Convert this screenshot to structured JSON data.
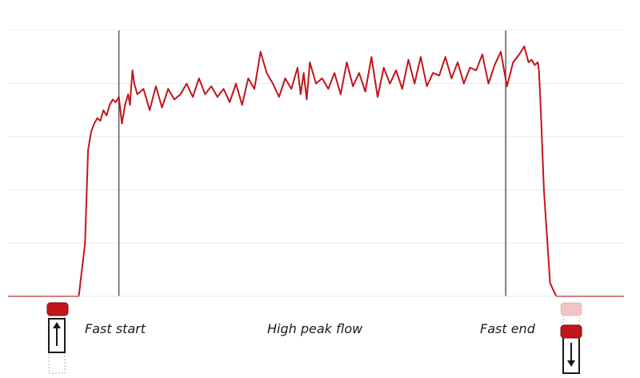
{
  "chart_data": {
    "type": "line",
    "title": "",
    "xlabel": "",
    "ylabel": "",
    "grid": true,
    "ylim": [
      0,
      100
    ],
    "xlim": [
      0,
      1000
    ],
    "line_color": "#c0161c",
    "marker_color": "#c0161c",
    "marker_light_color": "#f2c4c4",
    "series": [
      {
        "x": [
          0,
          115,
          125,
          130,
          135,
          140,
          145,
          150,
          155,
          160,
          165,
          170,
          175,
          180,
          185,
          190,
          195,
          198,
          202,
          205,
          210,
          220,
          230,
          240,
          250,
          260,
          270,
          280,
          290,
          300,
          310,
          320,
          330,
          340,
          350,
          360,
          370,
          380,
          390,
          400,
          410,
          420,
          430,
          440,
          450,
          460,
          470,
          475,
          480,
          485,
          490,
          500,
          510,
          520,
          530,
          540,
          550,
          560,
          570,
          580,
          590,
          600,
          610,
          620,
          630,
          640,
          650,
          660,
          670,
          680,
          690,
          700,
          710,
          720,
          730,
          740,
          750,
          760,
          770,
          780,
          790,
          800,
          810,
          820,
          830,
          838,
          845,
          850,
          855,
          860,
          862,
          865,
          870,
          880,
          890,
          900,
          1000
        ],
        "values": [
          0,
          0,
          20,
          55,
          62,
          65,
          67,
          66,
          70,
          68,
          72,
          74,
          73,
          75,
          65,
          72,
          76,
          72,
          85,
          80,
          76,
          78,
          70,
          79,
          71,
          78,
          74,
          76,
          80,
          75,
          82,
          76,
          79,
          75,
          78,
          73,
          80,
          72,
          82,
          78,
          92,
          84,
          80,
          75,
          82,
          78,
          86,
          76,
          84,
          74,
          88,
          80,
          82,
          78,
          84,
          76,
          88,
          79,
          84,
          77,
          90,
          75,
          86,
          80,
          85,
          78,
          89,
          80,
          90,
          79,
          84,
          83,
          90,
          82,
          88,
          80,
          86,
          85,
          91,
          80,
          87,
          92,
          79,
          88,
          91,
          94,
          88,
          89,
          87,
          88,
          85,
          70,
          40,
          5,
          0,
          0,
          0
        ]
      }
    ],
    "phase_boundaries": [
      180,
      808
    ],
    "annotations": {
      "start": "Fast start",
      "middle": "High peak flow",
      "end": "Fast end"
    }
  }
}
